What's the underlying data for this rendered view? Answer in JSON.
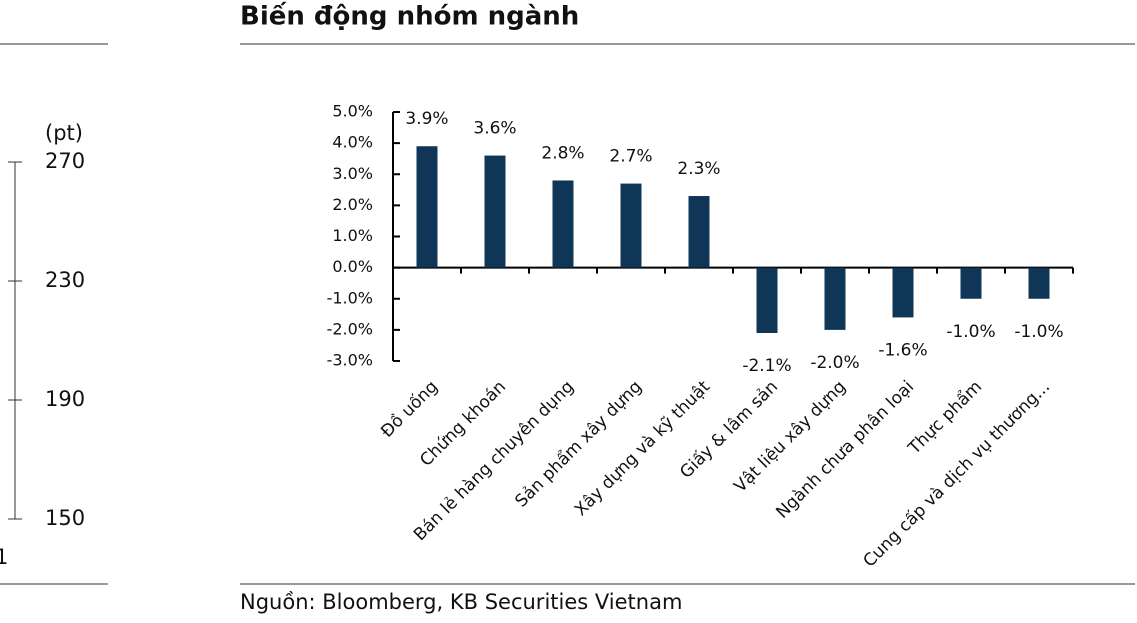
{
  "chart_data": [
    {
      "type": "line",
      "y_unit": "(pt)",
      "ylim": [
        150,
        270
      ],
      "yticks": [
        150,
        190,
        230,
        270
      ],
      "x_fragment": "1"
    },
    {
      "type": "bar",
      "title": "Biến động nhóm ngành",
      "categories": [
        "Đồ uống",
        "Chứng khoán",
        "Bán lẻ hàng chuyên dụng",
        "Sản phẩm xây dựng",
        "Xây dựng và kỹ thuật",
        "Giấy & lâm sản",
        "Vật liệu xây dựng",
        "Ngành chưa phân loại",
        "Thực phẩm",
        "Cung cấp và dịch vụ thương..."
      ],
      "values": [
        3.9,
        3.6,
        2.8,
        2.7,
        2.3,
        -2.1,
        -2.0,
        -1.6,
        -1.0,
        -1.0
      ],
      "value_labels": [
        "3.9%",
        "3.6%",
        "2.8%",
        "2.7%",
        "2.3%",
        "-2.1%",
        "-2.0%",
        "-1.6%",
        "-1.0%",
        "-1.0%"
      ],
      "color": "#0f3557",
      "ylim": [
        -3,
        5
      ],
      "yticks": [
        {
          "value": -3,
          "label": "-3.0%"
        },
        {
          "value": -2,
          "label": "-2.0%"
        },
        {
          "value": -1,
          "label": "-1.0%"
        },
        {
          "value": 0,
          "label": "0.0%"
        },
        {
          "value": 1,
          "label": "1.0%"
        },
        {
          "value": 2,
          "label": "2.0%"
        },
        {
          "value": 3,
          "label": "3.0%"
        },
        {
          "value": 4,
          "label": "4.0%"
        },
        {
          "value": 5,
          "label": "5.0%"
        }
      ],
      "source": "Nguồn: Bloomberg, KB Securities Vietnam"
    }
  ]
}
